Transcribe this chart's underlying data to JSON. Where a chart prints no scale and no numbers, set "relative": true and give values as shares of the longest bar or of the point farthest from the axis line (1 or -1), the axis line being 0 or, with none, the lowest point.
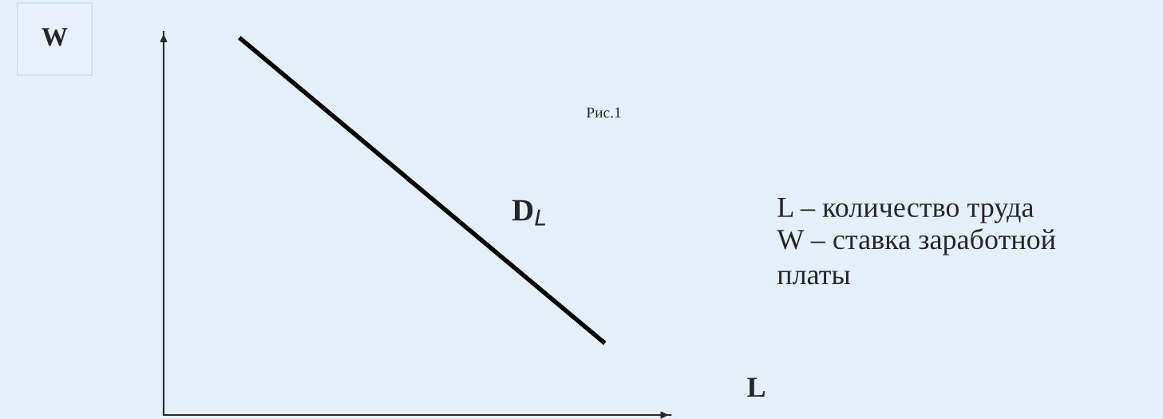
{
  "chart_data": {
    "type": "line",
    "relative": true,
    "xlabel": "L",
    "ylabel": "W",
    "categories": [
      null,
      null
    ],
    "series": [
      {
        "color": "#000000",
        "values": [
          1,
          0.19
        ]
      }
    ],
    "annotations": [
      "Рис.1",
      "D$_{L}$",
      "L – количество труда",
      "W – ставка заработной\nплаты"
    ]
  }
}
